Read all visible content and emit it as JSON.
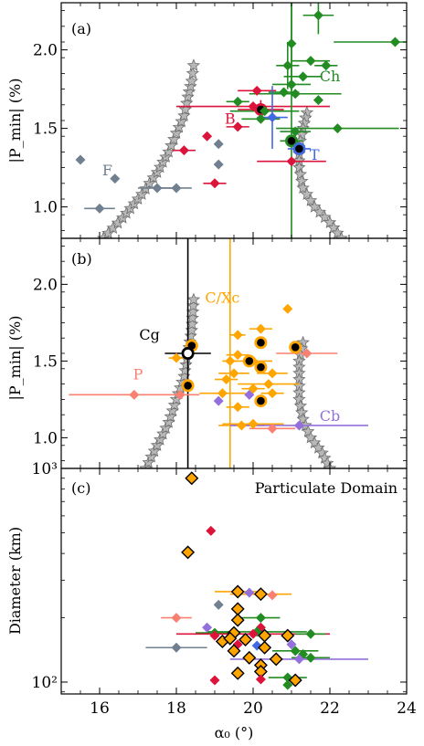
{
  "figure": {
    "x_axis_label": "α₀ (°)",
    "x_ticks": [
      "16",
      "18",
      "20",
      "22",
      "24"
    ]
  },
  "chart_data": [
    {
      "type": "scatter",
      "panel_label": "(a)",
      "ylabel": "|P_min| (%)",
      "ylim": [
        0.8,
        2.3
      ],
      "xlim": [
        15,
        24
      ],
      "y_ticks": [
        {
          "v": 1.0,
          "t": "1.0"
        },
        {
          "v": 1.5,
          "t": "1.5"
        },
        {
          "v": 2.0,
          "t": "2.0"
        }
      ],
      "annotations": [
        {
          "text": "F",
          "x": 16.2,
          "y": 1.2,
          "color": "#708090"
        },
        {
          "text": "B",
          "x": 19.4,
          "y": 1.53,
          "color": "#dc143c"
        },
        {
          "text": "Ch",
          "x": 22.0,
          "y": 1.8,
          "color": "#228b22"
        },
        {
          "text": "T",
          "x": 21.6,
          "y": 1.3,
          "color": "#4169e1"
        }
      ],
      "model_curves": [
        {
          "x": [
            16.1,
            16.6,
            17.1,
            17.5,
            17.8,
            18.0,
            18.2,
            18.3,
            18.4,
            18.45
          ],
          "y": [
            0.8,
            0.93,
            1.08,
            1.22,
            1.35,
            1.47,
            1.58,
            1.7,
            1.8,
            1.9
          ]
        },
        {
          "x": [
            21.4,
            21.3,
            21.2,
            21.2,
            21.3,
            21.6,
            22.0,
            22.3
          ],
          "y": [
            1.6,
            1.5,
            1.38,
            1.25,
            1.12,
            1.0,
            0.9,
            0.8
          ]
        }
      ],
      "series": [
        {
          "class": "F",
          "color": "#708090",
          "points": [
            {
              "x": 15.5,
              "y": 1.3
            },
            {
              "x": 16.0,
              "y": 0.99,
              "xerr": 0.4
            },
            {
              "x": 16.4,
              "y": 1.18
            },
            {
              "x": 17.5,
              "y": 1.12,
              "xerr": 0.5
            },
            {
              "x": 18.0,
              "y": 1.12,
              "xerr": 0.4
            },
            {
              "x": 19.1,
              "y": 1.4
            },
            {
              "x": 19.1,
              "y": 1.27
            }
          ]
        },
        {
          "class": "B",
          "color": "#dc143c",
          "points": [
            {
              "x": 18.2,
              "y": 1.36,
              "xerr": 0.3
            },
            {
              "x": 18.8,
              "y": 1.45
            },
            {
              "x": 19.0,
              "y": 1.15,
              "xerr": 0.3
            },
            {
              "x": 19.6,
              "y": 1.51,
              "xerr": 0.3
            },
            {
              "x": 20.1,
              "y": 1.74,
              "xerr": 0.5
            },
            {
              "x": 21.0,
              "y": 1.29,
              "xerr": 0.9
            },
            {
              "x": 20.2,
              "y": 1.62,
              "hl": true,
              "xerr": 0.6,
              "yerr": 0.06
            },
            {
              "x": 20.0,
              "y": 1.64,
              "xerr": 2.0
            }
          ]
        },
        {
          "class": "Ch",
          "color": "#228b22",
          "points": [
            {
              "x": 21.7,
              "y": 2.22,
              "xerr": 0.4,
              "yerr": 0.12
            },
            {
              "x": 21.0,
              "y": 2.04,
              "yerr": 0.3
            },
            {
              "x": 23.7,
              "y": 2.05,
              "xerr": 1.6
            },
            {
              "x": 21.5,
              "y": 1.93,
              "xerr": 0.5
            },
            {
              "x": 20.9,
              "y": 1.9,
              "xerr": 0.3,
              "yerr": 0.15
            },
            {
              "x": 21.9,
              "y": 1.9,
              "xerr": 0.3
            },
            {
              "x": 21.3,
              "y": 1.83,
              "xerr": 0.5
            },
            {
              "x": 21.0,
              "y": 1.78,
              "xerr": 0.5
            },
            {
              "x": 20.8,
              "y": 1.73,
              "xerr": 0.4
            },
            {
              "x": 21.1,
              "y": 1.72,
              "xerr": 1.2
            },
            {
              "x": 21.7,
              "y": 1.68
            },
            {
              "x": 19.6,
              "y": 1.67,
              "xerr": 0.3
            },
            {
              "x": 20.3,
              "y": 1.61,
              "xerr": 0.9
            },
            {
              "x": 20.2,
              "y": 1.56,
              "xerr": 0.5
            },
            {
              "x": 22.2,
              "y": 1.5,
              "xerr": 1.6
            },
            {
              "x": 21.1,
              "y": 1.48,
              "xerr": 0.4
            },
            {
              "x": 21.0,
              "y": 1.42,
              "hl": true,
              "xerr": 0.3,
              "yerr": 0.9
            }
          ]
        },
        {
          "class": "T",
          "color": "#4169e1",
          "points": [
            {
              "x": 20.5,
              "y": 1.57,
              "xerr": 0.4,
              "yerr": 0.2
            },
            {
              "x": 21.2,
              "y": 1.37,
              "hl": true,
              "xerr": 0.3
            }
          ]
        }
      ]
    },
    {
      "type": "scatter",
      "panel_label": "(b)",
      "ylabel": "|P_min| (%)",
      "ylim": [
        0.8,
        2.3
      ],
      "xlim": [
        15,
        24
      ],
      "y_ticks": [
        {
          "v": 1.0,
          "t": "1.0"
        },
        {
          "v": 1.5,
          "t": "1.5"
        },
        {
          "v": 2.0,
          "t": "2.0"
        }
      ],
      "annotations": [
        {
          "text": "C/Xc",
          "x": 19.2,
          "y": 1.88,
          "color": "#ffa500"
        },
        {
          "text": "Cg",
          "x": 17.3,
          "y": 1.64,
          "color": "#000000"
        },
        {
          "text": "P",
          "x": 17.0,
          "y": 1.38,
          "color": "#fa8072"
        },
        {
          "text": "Cb",
          "x": 22.0,
          "y": 1.11,
          "color": "#9370db"
        }
      ],
      "model_curves": [
        {
          "x": [
            17.2,
            17.5,
            17.8,
            18.0,
            18.2,
            18.3,
            18.4,
            18.45
          ],
          "y": [
            0.8,
            0.95,
            1.1,
            1.25,
            1.4,
            1.55,
            1.7,
            1.9
          ]
        },
        {
          "x": [
            21.3,
            21.2,
            21.2,
            21.2,
            21.3,
            21.5,
            21.8,
            22.0
          ],
          "y": [
            1.62,
            1.5,
            1.38,
            1.25,
            1.12,
            1.0,
            0.9,
            0.8
          ]
        }
      ],
      "series": [
        {
          "class": "C/Xc",
          "color": "#ffa500",
          "points": [
            {
              "x": 20.9,
              "y": 1.84
            },
            {
              "x": 18.0,
              "y": 1.52,
              "xerr": 0.2
            },
            {
              "x": 19.6,
              "y": 1.67,
              "xerr": 0.2
            },
            {
              "x": 20.2,
              "y": 1.71,
              "xerr": 0.3
            },
            {
              "x": 19.6,
              "y": 1.54,
              "xerr": 0.3
            },
            {
              "x": 19.5,
              "y": 1.42,
              "xerr": 0.4
            },
            {
              "x": 19.3,
              "y": 1.38,
              "xerr": 0.3
            },
            {
              "x": 19.2,
              "y": 1.29,
              "xerr": 0.6
            },
            {
              "x": 19.6,
              "y": 1.2,
              "xerr": 0.3
            },
            {
              "x": 19.7,
              "y": 1.08,
              "xerr": 0.6
            },
            {
              "x": 20.0,
              "y": 1.09,
              "xerr": 0.8
            },
            {
              "x": 19.4,
              "y": 1.5,
              "xerr": 0.2,
              "yerr": 0.9
            },
            {
              "x": 20.0,
              "y": 1.5,
              "xerr": 0.5
            },
            {
              "x": 20.4,
              "y": 1.35,
              "xerr": 0.8
            },
            {
              "x": 20.5,
              "y": 1.29,
              "xerr": 0.3
            },
            {
              "x": 20.5,
              "y": 1.42,
              "xerr": 0.4
            },
            {
              "x": 20.0,
              "y": 1.32,
              "xerr": 0.3
            },
            {
              "x": 18.4,
              "y": 1.6,
              "hl": true
            },
            {
              "x": 20.2,
              "y": 1.62,
              "hl": true
            },
            {
              "x": 19.9,
              "y": 1.5,
              "hl": true
            },
            {
              "x": 20.2,
              "y": 1.46,
              "hl": true
            },
            {
              "x": 21.1,
              "y": 1.59,
              "hl": true
            },
            {
              "x": 18.3,
              "y": 1.34,
              "hl": true
            },
            {
              "x": 20.2,
              "y": 1.24,
              "hl": true
            }
          ]
        },
        {
          "class": "Cg",
          "color": "#000000",
          "points": [
            {
              "x": 18.3,
              "y": 1.55,
              "hl": true,
              "open": true,
              "xerr": 0.6,
              "yerr": 0.9
            }
          ]
        },
        {
          "class": "P",
          "color": "#fa8072",
          "points": [
            {
              "x": 16.9,
              "y": 1.28,
              "xerr": 1.7
            },
            {
              "x": 18.1,
              "y": 1.28
            },
            {
              "x": 20.5,
              "y": 1.06,
              "xerr": 0.6
            },
            {
              "x": 21.4,
              "y": 1.55,
              "xerr": 0.8
            }
          ]
        },
        {
          "class": "Cb",
          "color": "#9370db",
          "points": [
            {
              "x": 19.1,
              "y": 1.24
            },
            {
              "x": 19.9,
              "y": 1.28
            },
            {
              "x": 21.2,
              "y": 1.08,
              "xerr": 1.8
            }
          ]
        }
      ]
    },
    {
      "type": "scatter",
      "panel_label": "(c)",
      "title": "Particulate Domain",
      "ylabel": "Diameter (km)",
      "yscale": "log",
      "ylim": [
        88,
        1000
      ],
      "xlim": [
        15,
        24
      ],
      "y_ticks": [
        {
          "v": 100,
          "t": "10²"
        },
        {
          "v": 1000,
          "t": "10³"
        }
      ],
      "points": [
        {
          "x": 18.4,
          "y": 900,
          "color": "#ffa500",
          "hl": true
        },
        {
          "x": 18.9,
          "y": 510,
          "color": "#dc143c"
        },
        {
          "x": 18.3,
          "y": 405,
          "color": "#ffa500",
          "hl": true
        },
        {
          "x": 19.6,
          "y": 265,
          "color": "#ffa500",
          "hl": true,
          "xerr": 0.6
        },
        {
          "x": 19.9,
          "y": 262,
          "color": "#9370db"
        },
        {
          "x": 20.2,
          "y": 258,
          "color": "#ffa500",
          "hl": true,
          "xerr": 0.8
        },
        {
          "x": 20.5,
          "y": 255,
          "color": "#fa8072"
        },
        {
          "x": 19.1,
          "y": 230,
          "color": "#708090"
        },
        {
          "x": 19.6,
          "y": 220,
          "color": "#ffa500",
          "hl": true
        },
        {
          "x": 20.2,
          "y": 200,
          "color": "#228b22",
          "xerr": 0.5
        },
        {
          "x": 18.0,
          "y": 200,
          "color": "#fa8072",
          "xerr": 0.4
        },
        {
          "x": 19.6,
          "y": 195,
          "color": "#ffa500",
          "hl": true
        },
        {
          "x": 18.8,
          "y": 180,
          "color": "#9370db"
        },
        {
          "x": 20.2,
          "y": 180,
          "color": "#dc143c"
        },
        {
          "x": 19.0,
          "y": 170,
          "color": "#228b22",
          "xerr": 0.5
        },
        {
          "x": 19.5,
          "y": 170,
          "color": "#ffa500",
          "hl": true
        },
        {
          "x": 20.1,
          "y": 172,
          "color": "#228b22",
          "xerr": 1.3
        },
        {
          "x": 19.0,
          "y": 165,
          "color": "#dc143c"
        },
        {
          "x": 20.3,
          "y": 165,
          "color": "#ffa500",
          "hl": true
        },
        {
          "x": 20.0,
          "y": 168,
          "color": "#dc143c",
          "xerr": 2.0
        },
        {
          "x": 20.9,
          "y": 165,
          "color": "#ffa500",
          "hl": true
        },
        {
          "x": 21.5,
          "y": 168,
          "color": "#228b22",
          "xerr": 0.4
        },
        {
          "x": 19.2,
          "y": 155,
          "color": "#ffa500",
          "hl": true
        },
        {
          "x": 19.4,
          "y": 160,
          "color": "#ffa500",
          "hl": true
        },
        {
          "x": 19.8,
          "y": 158,
          "color": "#ffa500",
          "hl": true
        },
        {
          "x": 18.0,
          "y": 145,
          "color": "#708090",
          "xerr": 0.8
        },
        {
          "x": 19.6,
          "y": 150,
          "color": "#dc143c"
        },
        {
          "x": 20.1,
          "y": 148,
          "color": "#4169e1"
        },
        {
          "x": 19.5,
          "y": 140,
          "color": "#ffa500",
          "hl": true
        },
        {
          "x": 20.3,
          "y": 145,
          "color": "#ffa500",
          "hl": true
        },
        {
          "x": 21.0,
          "y": 150,
          "color": "#9370db"
        },
        {
          "x": 21.1,
          "y": 140,
          "color": "#228b22",
          "xerr": 0.6
        },
        {
          "x": 21.3,
          "y": 135,
          "color": "#228b22"
        },
        {
          "x": 21.5,
          "y": 130,
          "color": "#228b22",
          "xerr": 0.5
        },
        {
          "x": 21.2,
          "y": 128,
          "color": "#9370db",
          "xerr": 1.8
        },
        {
          "x": 19.9,
          "y": 130,
          "color": "#ffa500",
          "hl": true
        },
        {
          "x": 20.6,
          "y": 128,
          "color": "#ffa500",
          "hl": true
        },
        {
          "x": 20.2,
          "y": 120,
          "color": "#ffa500",
          "hl": true
        },
        {
          "x": 19.6,
          "y": 110,
          "color": "#ffa500",
          "hl": true
        },
        {
          "x": 20.2,
          "y": 112,
          "color": "#ffa500",
          "hl": true
        },
        {
          "x": 20.9,
          "y": 105,
          "color": "#228b22",
          "xerr": 0.5
        },
        {
          "x": 21.1,
          "y": 102,
          "color": "#ffa500",
          "hl": true
        },
        {
          "x": 19.0,
          "y": 102,
          "color": "#dc143c"
        },
        {
          "x": 20.2,
          "y": 103,
          "color": "#dc143c"
        },
        {
          "x": 20.9,
          "y": 97,
          "color": "#228b22"
        }
      ]
    }
  ]
}
